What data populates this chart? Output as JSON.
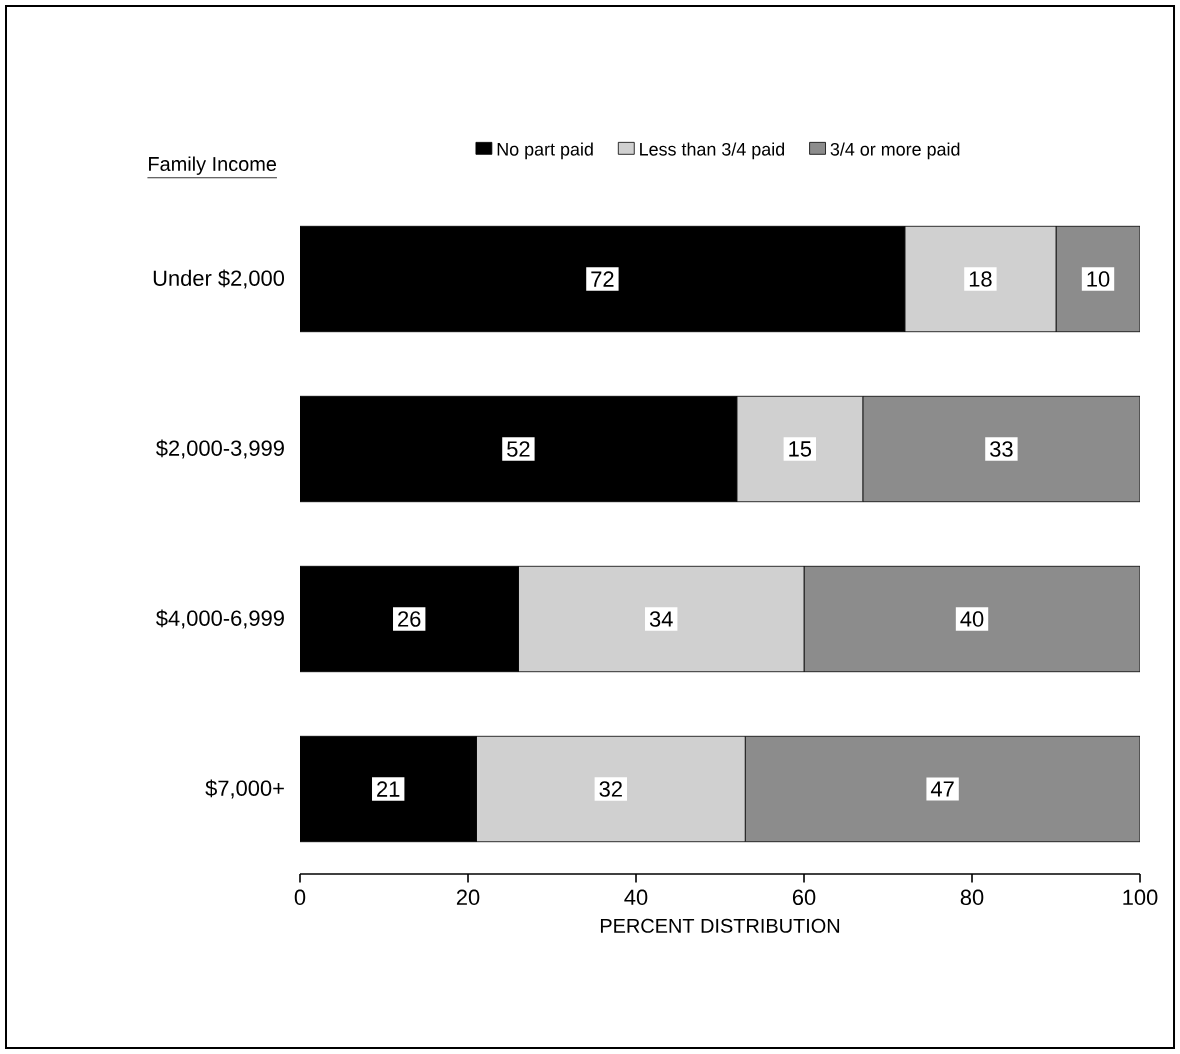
{
  "chart_data": {
    "type": "bar",
    "orientation": "horizontal",
    "stacked": true,
    "xlabel": "PERCENT DISTRIBUTION",
    "ylabel": "Family Income",
    "categories": [
      "Under $2,000",
      "$2,000-3,999",
      "$4,000-6,999",
      "$7,000+"
    ],
    "series": [
      {
        "name": "No part paid",
        "color": "#000000",
        "values": [
          72,
          52,
          26,
          21
        ]
      },
      {
        "name": "Less than 3/4 paid",
        "color": "#d0d0d0",
        "values": [
          18,
          15,
          34,
          32
        ]
      },
      {
        "name": "3/4 or more paid",
        "color": "#8c8c8c",
        "values": [
          10,
          33,
          40,
          47
        ]
      }
    ],
    "xlim": [
      0,
      100
    ],
    "xticks": [
      0,
      20,
      40,
      60,
      80,
      100
    ],
    "data_labels": true,
    "legend": "top",
    "grid": false
  }
}
